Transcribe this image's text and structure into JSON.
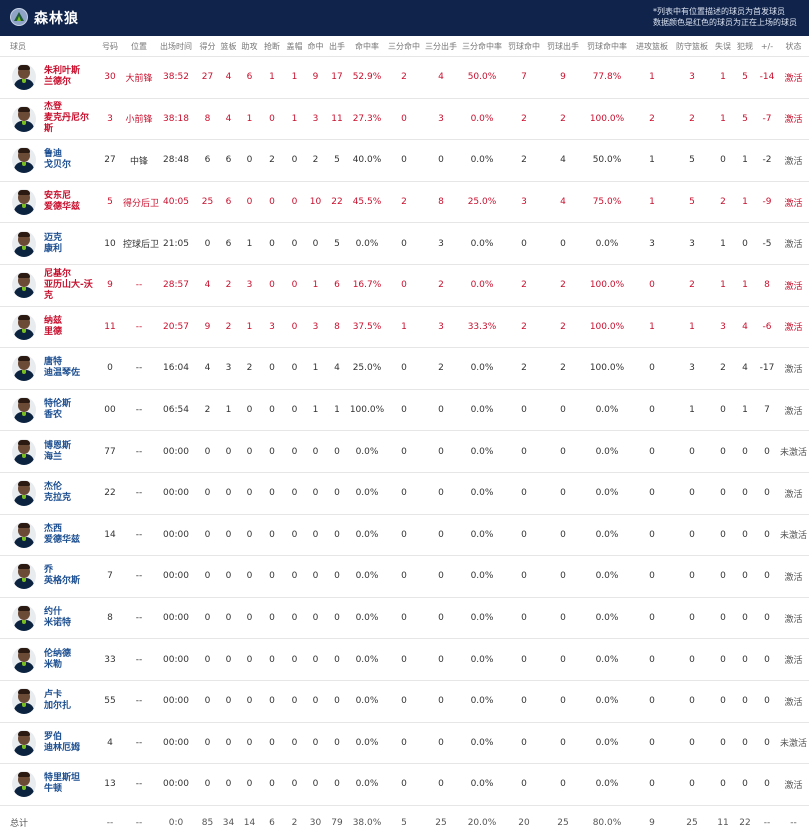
{
  "team": {
    "name": "森林狼",
    "note_line1": "*列表中有位置描述的球员为首发球员",
    "note_line2": "数据颜色是红色的球员为正在上场的球员"
  },
  "columns": [
    "球员",
    "号码",
    "位置",
    "出场时间",
    "得分",
    "篮板",
    "助攻",
    "抢断",
    "盖帽",
    "命中",
    "出手",
    "命中率",
    "三分命中",
    "三分出手",
    "三分命中率",
    "罚球命中",
    "罚球出手",
    "罚球命中率",
    "进攻篮板",
    "防守篮板",
    "失误",
    "犯规",
    "+/-",
    "状态"
  ],
  "players": [
    {
      "name": "朱利叶斯\n兰德尔",
      "active": true,
      "cells": [
        "30",
        "大前锋",
        "38:52",
        "27",
        "4",
        "6",
        "1",
        "1",
        "9",
        "17",
        "52.9%",
        "2",
        "4",
        "50.0%",
        "7",
        "9",
        "77.8%",
        "1",
        "3",
        "1",
        "5",
        "-14",
        "激活"
      ]
    },
    {
      "name": "杰登\n麦克丹尼尔斯",
      "active": true,
      "cells": [
        "3",
        "小前锋",
        "38:18",
        "8",
        "4",
        "1",
        "0",
        "1",
        "3",
        "11",
        "27.3%",
        "0",
        "3",
        "0.0%",
        "2",
        "2",
        "100.0%",
        "2",
        "2",
        "1",
        "5",
        "-7",
        "激活"
      ]
    },
    {
      "name": "鲁迪\n戈贝尔",
      "active": false,
      "cells": [
        "27",
        "中锋",
        "28:48",
        "6",
        "6",
        "0",
        "2",
        "0",
        "2",
        "5",
        "40.0%",
        "0",
        "0",
        "0.0%",
        "2",
        "4",
        "50.0%",
        "1",
        "5",
        "0",
        "1",
        "-2",
        "激活"
      ]
    },
    {
      "name": "安东尼\n爱德华兹",
      "active": true,
      "cells": [
        "5",
        "得分后卫",
        "40:05",
        "25",
        "6",
        "0",
        "0",
        "0",
        "10",
        "22",
        "45.5%",
        "2",
        "8",
        "25.0%",
        "3",
        "4",
        "75.0%",
        "1",
        "5",
        "2",
        "1",
        "-9",
        "激活"
      ]
    },
    {
      "name": "迈克\n康利",
      "active": false,
      "cells": [
        "10",
        "控球后卫",
        "21:05",
        "0",
        "6",
        "1",
        "0",
        "0",
        "0",
        "5",
        "0.0%",
        "0",
        "3",
        "0.0%",
        "0",
        "0",
        "0.0%",
        "3",
        "3",
        "1",
        "0",
        "-5",
        "激活"
      ]
    },
    {
      "name": "尼基尔\n亚历山大-沃克",
      "active": true,
      "cells": [
        "9",
        "--",
        "28:57",
        "4",
        "2",
        "3",
        "0",
        "0",
        "1",
        "6",
        "16.7%",
        "0",
        "2",
        "0.0%",
        "2",
        "2",
        "100.0%",
        "0",
        "2",
        "1",
        "1",
        "8",
        "激活"
      ]
    },
    {
      "name": "纳兹\n里德",
      "active": true,
      "cells": [
        "11",
        "--",
        "20:57",
        "9",
        "2",
        "1",
        "3",
        "0",
        "3",
        "8",
        "37.5%",
        "1",
        "3",
        "33.3%",
        "2",
        "2",
        "100.0%",
        "1",
        "1",
        "3",
        "4",
        "-6",
        "激活"
      ]
    },
    {
      "name": "唐特\n迪温琴佐",
      "active": false,
      "cells": [
        "0",
        "--",
        "16:04",
        "4",
        "3",
        "2",
        "0",
        "0",
        "1",
        "4",
        "25.0%",
        "0",
        "2",
        "0.0%",
        "2",
        "2",
        "100.0%",
        "0",
        "3",
        "2",
        "4",
        "-17",
        "激活"
      ]
    },
    {
      "name": "特伦斯\n香农",
      "active": false,
      "cells": [
        "00",
        "--",
        "06:54",
        "2",
        "1",
        "0",
        "0",
        "0",
        "1",
        "1",
        "100.0%",
        "0",
        "0",
        "0.0%",
        "0",
        "0",
        "0.0%",
        "0",
        "1",
        "0",
        "1",
        "7",
        "激活"
      ]
    },
    {
      "name": "博恩斯\n海兰",
      "active": false,
      "cells": [
        "77",
        "--",
        "00:00",
        "0",
        "0",
        "0",
        "0",
        "0",
        "0",
        "0",
        "0.0%",
        "0",
        "0",
        "0.0%",
        "0",
        "0",
        "0.0%",
        "0",
        "0",
        "0",
        "0",
        "0",
        "未激活"
      ]
    },
    {
      "name": "杰伦\n克拉克",
      "active": false,
      "cells": [
        "22",
        "--",
        "00:00",
        "0",
        "0",
        "0",
        "0",
        "0",
        "0",
        "0",
        "0.0%",
        "0",
        "0",
        "0.0%",
        "0",
        "0",
        "0.0%",
        "0",
        "0",
        "0",
        "0",
        "0",
        "激活"
      ]
    },
    {
      "name": "杰西\n爱德华兹",
      "active": false,
      "cells": [
        "14",
        "--",
        "00:00",
        "0",
        "0",
        "0",
        "0",
        "0",
        "0",
        "0",
        "0.0%",
        "0",
        "0",
        "0.0%",
        "0",
        "0",
        "0.0%",
        "0",
        "0",
        "0",
        "0",
        "0",
        "未激活"
      ]
    },
    {
      "name": "乔\n英格尔斯",
      "active": false,
      "cells": [
        "7",
        "--",
        "00:00",
        "0",
        "0",
        "0",
        "0",
        "0",
        "0",
        "0",
        "0.0%",
        "0",
        "0",
        "0.0%",
        "0",
        "0",
        "0.0%",
        "0",
        "0",
        "0",
        "0",
        "0",
        "激活"
      ]
    },
    {
      "name": "约什\n米诺特",
      "active": false,
      "cells": [
        "8",
        "--",
        "00:00",
        "0",
        "0",
        "0",
        "0",
        "0",
        "0",
        "0",
        "0.0%",
        "0",
        "0",
        "0.0%",
        "0",
        "0",
        "0.0%",
        "0",
        "0",
        "0",
        "0",
        "0",
        "激活"
      ]
    },
    {
      "name": "伦纳德\n米勒",
      "active": false,
      "cells": [
        "33",
        "--",
        "00:00",
        "0",
        "0",
        "0",
        "0",
        "0",
        "0",
        "0",
        "0.0%",
        "0",
        "0",
        "0.0%",
        "0",
        "0",
        "0.0%",
        "0",
        "0",
        "0",
        "0",
        "0",
        "激活"
      ]
    },
    {
      "name": "卢卡\n加尔扎",
      "active": false,
      "cells": [
        "55",
        "--",
        "00:00",
        "0",
        "0",
        "0",
        "0",
        "0",
        "0",
        "0",
        "0.0%",
        "0",
        "0",
        "0.0%",
        "0",
        "0",
        "0.0%",
        "0",
        "0",
        "0",
        "0",
        "0",
        "激活"
      ]
    },
    {
      "name": "罗伯\n迪林厄姆",
      "active": false,
      "cells": [
        "4",
        "--",
        "00:00",
        "0",
        "0",
        "0",
        "0",
        "0",
        "0",
        "0",
        "0.0%",
        "0",
        "0",
        "0.0%",
        "0",
        "0",
        "0.0%",
        "0",
        "0",
        "0",
        "0",
        "0",
        "未激活"
      ]
    },
    {
      "name": "特里斯坦\n牛顿",
      "active": false,
      "cells": [
        "13",
        "--",
        "00:00",
        "0",
        "0",
        "0",
        "0",
        "0",
        "0",
        "0",
        "0.0%",
        "0",
        "0",
        "0.0%",
        "0",
        "0",
        "0.0%",
        "0",
        "0",
        "0",
        "0",
        "0",
        "激活"
      ]
    }
  ],
  "totals": {
    "label": "总计",
    "cells": [
      "--",
      "--",
      "0:0",
      "85",
      "34",
      "14",
      "6",
      "2",
      "30",
      "79",
      "38.0%",
      "5",
      "25",
      "20.0%",
      "20",
      "25",
      "80.0%",
      "9",
      "25",
      "11",
      "22",
      "--",
      "--"
    ]
  },
  "colors": {
    "header_bg": "#10234a",
    "active_red": "#c8102e",
    "name_blue": "#1d4f91"
  }
}
